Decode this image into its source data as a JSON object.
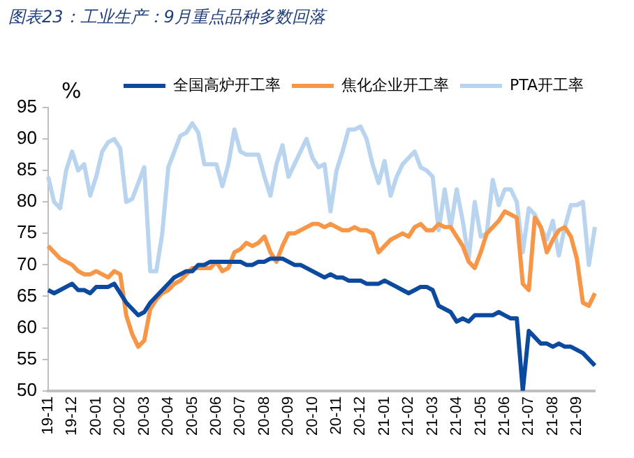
{
  "chart_data": {
    "type": "line",
    "title": "图表23：工业生产：9月重点品种多数回落",
    "ylabel": "%",
    "categories": [
      "19-11",
      null,
      null,
      null,
      "19-12",
      null,
      null,
      null,
      "20-01",
      null,
      null,
      null,
      "20-02",
      null,
      null,
      null,
      "20-03",
      null,
      null,
      null,
      "20-04",
      null,
      null,
      null,
      "20-05",
      null,
      null,
      null,
      "20-06",
      null,
      null,
      null,
      "20-07",
      null,
      null,
      null,
      "20-08",
      null,
      null,
      null,
      "20-09",
      null,
      null,
      null,
      "20-10",
      null,
      null,
      null,
      "20-11",
      null,
      null,
      null,
      "20-12",
      null,
      null,
      null,
      "21-01",
      null,
      null,
      null,
      "21-02",
      null,
      null,
      null,
      "21-03",
      null,
      null,
      null,
      "21-04",
      null,
      null,
      null,
      "21-05",
      null,
      null,
      null,
      "21-06",
      null,
      null,
      null,
      "21-07",
      null,
      null,
      null,
      "21-08",
      null,
      null,
      null,
      "21-09",
      null,
      null,
      null
    ],
    "series": [
      {
        "name": "全国高炉开工率",
        "color": "#0b4a9e",
        "values": [
          66,
          65.5,
          66,
          66.5,
          67,
          66,
          66,
          65.5,
          66.5,
          66.5,
          66.5,
          67,
          65.5,
          64,
          63,
          62,
          62.5,
          64,
          65,
          66,
          67,
          68,
          68.5,
          69,
          69,
          70,
          70,
          70.5,
          70.5,
          70.5,
          70.5,
          70.5,
          70.5,
          70,
          70,
          70.5,
          70.5,
          71,
          71,
          71,
          70.5,
          70,
          70,
          69.5,
          69,
          68.5,
          68,
          68.5,
          68,
          68,
          67.5,
          67.5,
          67.5,
          67,
          67,
          67,
          67.5,
          67,
          66.5,
          66,
          65.5,
          66,
          66.5,
          66.5,
          66,
          63.5,
          63,
          62.5,
          61,
          61.5,
          61,
          62,
          62,
          62,
          62,
          62.5,
          62,
          61.5,
          61.5,
          50,
          59.5,
          58.5,
          57.5,
          57.5,
          57,
          57.5,
          57,
          57,
          56.5,
          56,
          55,
          54
        ]
      },
      {
        "name": "焦化企业开工率",
        "color": "#f79646",
        "values": [
          73,
          72,
          71,
          70.5,
          70,
          69,
          68.5,
          68.5,
          69,
          68.5,
          68,
          69,
          68.5,
          62,
          59,
          57,
          58,
          63,
          64.5,
          65.5,
          66,
          67,
          67.5,
          68.5,
          69.5,
          69.5,
          69.5,
          69.5,
          70.5,
          69,
          69.5,
          72,
          72.5,
          73.5,
          73,
          73.5,
          74.5,
          72,
          70.5,
          73,
          75,
          75,
          75.5,
          76,
          76.5,
          76.5,
          76,
          76.5,
          76,
          75.5,
          75.5,
          76,
          75.5,
          75.5,
          75,
          72,
          73,
          74,
          74.5,
          75,
          74.5,
          76,
          76.5,
          75.5,
          75.5,
          76.5,
          76,
          76,
          74.5,
          73,
          70.5,
          69.5,
          72,
          75,
          76,
          77,
          78.5,
          78,
          77.5,
          67,
          66,
          77.5,
          76,
          72,
          74,
          75.5,
          76,
          74.5,
          71,
          64,
          63.5,
          65.5
        ]
      },
      {
        "name": "PTA开工率",
        "color": "#b8d4ee",
        "values": [
          84,
          80,
          79,
          85,
          88,
          85,
          86,
          81,
          84,
          88,
          89.5,
          90,
          88.5,
          80,
          80.5,
          83,
          85.5,
          69,
          69,
          75,
          85.5,
          88,
          90.5,
          91,
          92.5,
          91,
          86,
          86,
          86,
          82.5,
          86,
          91.5,
          88,
          87.5,
          87.5,
          87.5,
          84,
          81,
          86,
          89,
          84,
          86,
          88,
          90,
          87,
          85.5,
          86,
          78.5,
          85,
          88,
          91.5,
          91.5,
          92,
          90,
          86,
          83,
          86.5,
          81,
          84,
          86,
          87,
          88,
          85.5,
          85,
          84,
          75.5,
          82,
          76,
          82,
          77,
          71,
          80,
          74.5,
          75,
          83.5,
          79.5,
          82,
          82,
          80,
          72,
          79,
          78,
          76,
          74,
          77,
          71.5,
          76,
          79.5,
          79.5,
          80,
          70,
          76
        ]
      }
    ],
    "ylim": [
      50,
      95
    ],
    "yticks": [
      50,
      55,
      60,
      65,
      70,
      75,
      80,
      85,
      90,
      95
    ],
    "grid": false,
    "legend": "top",
    "marker": "none"
  }
}
